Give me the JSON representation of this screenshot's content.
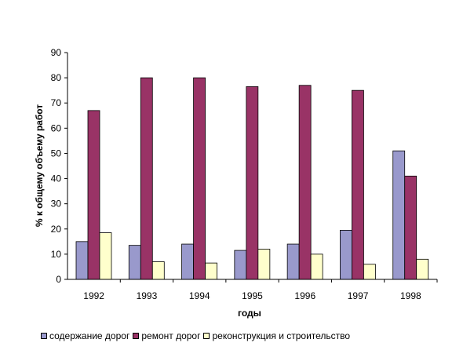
{
  "chart_data": {
    "type": "bar",
    "categories": [
      "1992",
      "1993",
      "1994",
      "1995",
      "1996",
      "1997",
      "1998"
    ],
    "series": [
      {
        "name": "содержание дорог",
        "color": "#9999cc",
        "values": [
          15,
          13.5,
          14,
          11.5,
          14,
          19.5,
          51
        ]
      },
      {
        "name": "ремонт дорог",
        "color": "#993366",
        "values": [
          67,
          80,
          80,
          76.5,
          77,
          75,
          41
        ]
      },
      {
        "name": "реконструкция и строительство",
        "color": "#ffffcc",
        "values": [
          18.5,
          7,
          6.5,
          12,
          10,
          6,
          8
        ]
      }
    ],
    "title": "",
    "xlabel": "годы",
    "ylabel": "% к общему объему работ",
    "ylim": [
      0,
      90
    ],
    "yticks": [
      "0",
      "10",
      "20",
      "30",
      "40",
      "50",
      "60",
      "70",
      "80",
      "90"
    ],
    "grid": false,
    "legend_position": "bottom"
  }
}
